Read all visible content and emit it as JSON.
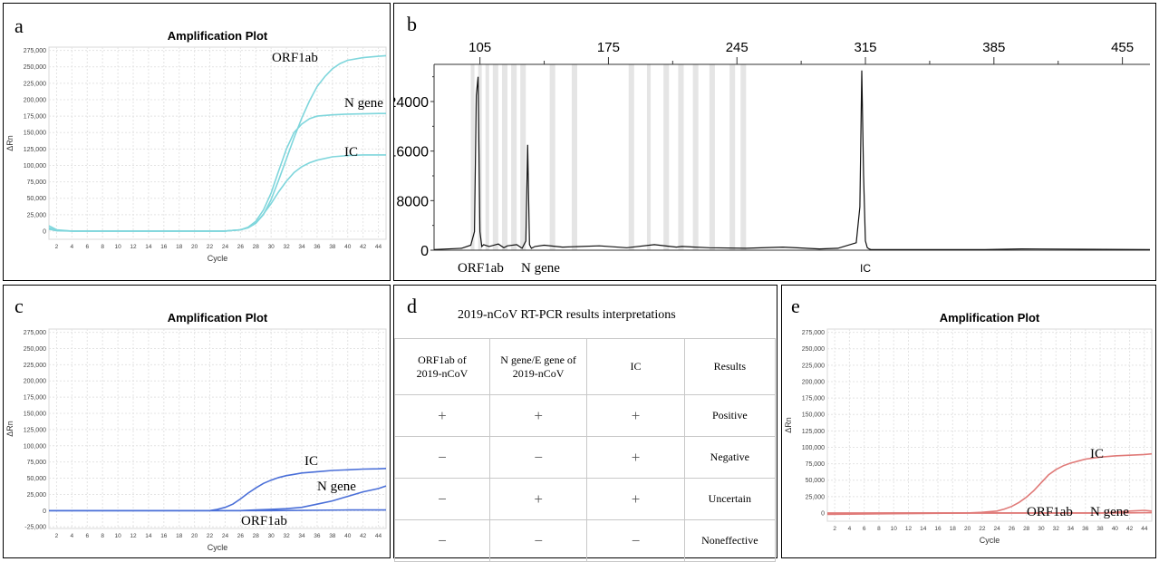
{
  "panels": {
    "a": {
      "label": "a",
      "title": "Amplification Plot",
      "ylabel": "ΔRn",
      "xlabel": "Cycle",
      "yticks": [
        "275,000",
        "250,000",
        "225,000",
        "200,000",
        "175,000",
        "150,000",
        "125,000",
        "100,000",
        "75,000",
        "50,000",
        "25,000",
        "0"
      ],
      "xticks": [
        "2",
        "4",
        "6",
        "8",
        "10",
        "12",
        "14",
        "16",
        "18",
        "20",
        "22",
        "24",
        "26",
        "28",
        "30",
        "32",
        "34",
        "36",
        "38",
        "40",
        "42",
        "44"
      ],
      "color": "#7fd6dc",
      "annotations": [
        "ORF1ab",
        "N gene",
        "IC"
      ]
    },
    "b": {
      "label": "b",
      "top_ticks": [
        "105",
        "175",
        "245",
        "315",
        "385",
        "455"
      ],
      "yticks": [
        "24000",
        "16000",
        "8000",
        "0"
      ],
      "bottom_labels": [
        "ORF1ab",
        "N gene",
        "IC"
      ]
    },
    "c": {
      "label": "c",
      "title": "Amplification Plot",
      "ylabel": "ΔRn",
      "xlabel": "Cycle",
      "yticks": [
        "275,000",
        "250,000",
        "225,000",
        "200,000",
        "175,000",
        "150,000",
        "125,000",
        "100,000",
        "75,000",
        "50,000",
        "25,000",
        "0",
        "-25,000"
      ],
      "xticks": [
        "2",
        "4",
        "6",
        "8",
        "10",
        "12",
        "14",
        "16",
        "18",
        "20",
        "22",
        "24",
        "26",
        "28",
        "30",
        "32",
        "34",
        "36",
        "38",
        "40",
        "42",
        "44"
      ],
      "color": "#4a6fd8",
      "annotations": [
        "IC",
        "N gene",
        "ORF1ab"
      ]
    },
    "d": {
      "label": "d",
      "title": "2019-nCoV RT-PCR results interpretations",
      "headers": [
        "ORF1ab of\n2019-nCoV",
        "N gene/E gene of\n2019-nCoV",
        "IC",
        "Results"
      ],
      "rows": [
        [
          "+",
          "+",
          "+",
          "Positive"
        ],
        [
          "−",
          "−",
          "+",
          "Negative"
        ],
        [
          "−",
          "+",
          "+",
          "Uncertain"
        ],
        [
          "−",
          "−",
          "−",
          "Noneffective"
        ]
      ]
    },
    "e": {
      "label": "e",
      "title": "Amplification Plot",
      "ylabel": "ΔRn",
      "xlabel": "Cycle",
      "yticks": [
        "275,000",
        "250,000",
        "225,000",
        "200,000",
        "175,000",
        "150,000",
        "125,000",
        "100,000",
        "75,000",
        "50,000",
        "25,000",
        "0"
      ],
      "xticks": [
        "2",
        "4",
        "6",
        "8",
        "10",
        "12",
        "14",
        "16",
        "18",
        "20",
        "22",
        "24",
        "26",
        "28",
        "30",
        "32",
        "34",
        "36",
        "38",
        "40",
        "42",
        "44"
      ],
      "color": "#e07a78",
      "annotations": [
        "IC",
        "ORF1ab",
        "N gene"
      ]
    }
  },
  "chart_data": [
    {
      "type": "line",
      "panel": "a",
      "title": "Amplification Plot",
      "xlabel": "Cycle",
      "ylabel": "ΔRn",
      "xlim": [
        1,
        45
      ],
      "ylim": [
        -12500,
        280000
      ],
      "series": [
        {
          "name": "ORF1ab",
          "x": [
            1,
            2,
            4,
            10,
            20,
            24,
            26,
            27,
            28,
            29,
            30,
            31,
            32,
            33,
            34,
            35,
            36,
            37,
            38,
            39,
            40,
            42,
            44,
            45
          ],
          "y": [
            8000,
            2000,
            0,
            0,
            0,
            0,
            2000,
            5000,
            12000,
            25000,
            48000,
            78000,
            110000,
            142000,
            172000,
            198000,
            220000,
            235000,
            247000,
            255000,
            260000,
            264000,
            266000,
            267000
          ]
        },
        {
          "name": "N gene",
          "x": [
            1,
            2,
            4,
            10,
            20,
            24,
            26,
            27,
            28,
            29,
            30,
            31,
            32,
            33,
            34,
            35,
            36,
            38,
            40,
            42,
            44,
            45
          ],
          "y": [
            5000,
            1000,
            0,
            0,
            0,
            0,
            2000,
            6000,
            15000,
            32000,
            58000,
            92000,
            125000,
            150000,
            163000,
            171000,
            175000,
            177000,
            178000,
            178500,
            179000,
            179000
          ]
        },
        {
          "name": "IC",
          "x": [
            1,
            2,
            4,
            10,
            20,
            24,
            26,
            27,
            28,
            29,
            30,
            31,
            32,
            33,
            34,
            35,
            36,
            38,
            40,
            42,
            44,
            45
          ],
          "y": [
            3000,
            500,
            0,
            0,
            0,
            0,
            2000,
            5000,
            12000,
            26000,
            42000,
            60000,
            76000,
            89000,
            98000,
            104000,
            108000,
            113000,
            115000,
            116000,
            116000,
            116000
          ]
        }
      ]
    },
    {
      "type": "line",
      "panel": "b",
      "xlim": [
        80,
        470
      ],
      "ylim": [
        0,
        30000
      ],
      "series": [
        {
          "name": "",
          "x": [
            80,
            95,
            100,
            102,
            103,
            104,
            105,
            106,
            107,
            110,
            115,
            118,
            120,
            125,
            128,
            130,
            131,
            132,
            133,
            135,
            140,
            150,
            170,
            185,
            200,
            212,
            215,
            230,
            250,
            270,
            290,
            300,
            310,
            312,
            313,
            314,
            315,
            316,
            317,
            318,
            320,
            330,
            380,
            400,
            470
          ],
          "y": [
            100,
            300,
            800,
            3000,
            25000,
            28000,
            3000,
            600,
            900,
            600,
            1000,
            400,
            700,
            900,
            300,
            1500,
            17000,
            900,
            300,
            600,
            800,
            500,
            700,
            400,
            900,
            500,
            600,
            400,
            300,
            500,
            200,
            300,
            1200,
            7000,
            29000,
            12000,
            1500,
            400,
            200,
            100,
            100,
            100,
            100,
            200,
            100
          ]
        }
      ]
    },
    {
      "type": "line",
      "panel": "c",
      "title": "Amplification Plot",
      "xlabel": "Cycle",
      "ylabel": "ΔRn",
      "xlim": [
        1,
        45
      ],
      "ylim": [
        -27500,
        280000
      ],
      "series": [
        {
          "name": "IC",
          "x": [
            1,
            10,
            20,
            22,
            23,
            24,
            25,
            26,
            27,
            28,
            29,
            30,
            31,
            32,
            33,
            34,
            36,
            38,
            40,
            42,
            44,
            45
          ],
          "y": [
            0,
            0,
            0,
            0,
            2000,
            5000,
            10000,
            18000,
            27000,
            35000,
            42000,
            47000,
            51000,
            54000,
            56000,
            58000,
            60000,
            62000,
            63000,
            64000,
            64500,
            65000
          ]
        },
        {
          "name": "N gene",
          "x": [
            1,
            10,
            20,
            24,
            26,
            28,
            30,
            32,
            34,
            36,
            38,
            40,
            42,
            44,
            45
          ],
          "y": [
            0,
            0,
            0,
            0,
            0,
            1000,
            2000,
            3000,
            5000,
            10000,
            15000,
            22000,
            29000,
            34000,
            38000
          ]
        },
        {
          "name": "ORF1ab",
          "x": [
            1,
            10,
            20,
            30,
            40,
            45
          ],
          "y": [
            0,
            0,
            0,
            0,
            1000,
            1000
          ]
        }
      ]
    },
    {
      "type": "line",
      "panel": "e",
      "title": "Amplification Plot",
      "xlabel": "Cycle",
      "ylabel": "ΔRn",
      "xlim": [
        1,
        45
      ],
      "ylim": [
        -12500,
        280000
      ],
      "series": [
        {
          "name": "IC",
          "x": [
            1,
            10,
            20,
            22,
            24,
            25,
            26,
            27,
            28,
            29,
            30,
            31,
            32,
            33,
            34,
            35,
            36,
            38,
            40,
            42,
            44,
            45
          ],
          "y": [
            0,
            0,
            0,
            1000,
            3000,
            6000,
            10000,
            16000,
            24000,
            34000,
            46000,
            58000,
            66000,
            72000,
            76000,
            79000,
            82000,
            85000,
            87000,
            88000,
            89000,
            90000
          ]
        },
        {
          "name": "ORF1ab",
          "x": [
            1,
            10,
            20,
            30,
            40,
            45
          ],
          "y": [
            -1000,
            0,
            0,
            0,
            0,
            500
          ]
        },
        {
          "name": "N gene",
          "x": [
            1,
            10,
            20,
            30,
            36,
            38,
            40,
            42,
            44,
            45
          ],
          "y": [
            -2000,
            -1000,
            0,
            0,
            0,
            0,
            1000,
            3000,
            4000,
            3000
          ]
        }
      ]
    }
  ]
}
